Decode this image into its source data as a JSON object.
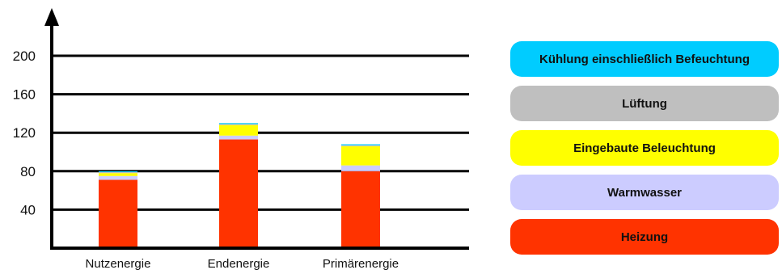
{
  "chart_data": {
    "type": "bar",
    "stacked": true,
    "categories": [
      "Nutzenergie",
      "Endenergie",
      "Primärenergie"
    ],
    "series": [
      {
        "name": "Heizung",
        "color": "#ff3300",
        "values": [
          71,
          113,
          80
        ]
      },
      {
        "name": "Warmwasser",
        "color": "#ccccff",
        "values": [
          4,
          4,
          6
        ]
      },
      {
        "name": "Eingebaute Beleuchtung",
        "color": "#ffff00",
        "values": [
          3,
          11,
          20
        ]
      },
      {
        "name": "Lüftung",
        "color": "#bfbfbf",
        "values": [
          1,
          1,
          1
        ]
      },
      {
        "name": "Kühlung einschließlich Befeuchtung",
        "color": "#00ccff",
        "values": [
          1,
          1,
          1
        ]
      }
    ],
    "yticks": [
      40,
      80,
      120,
      160,
      200
    ],
    "ylim": [
      0,
      230
    ],
    "grid": true,
    "legend_position": "right"
  }
}
